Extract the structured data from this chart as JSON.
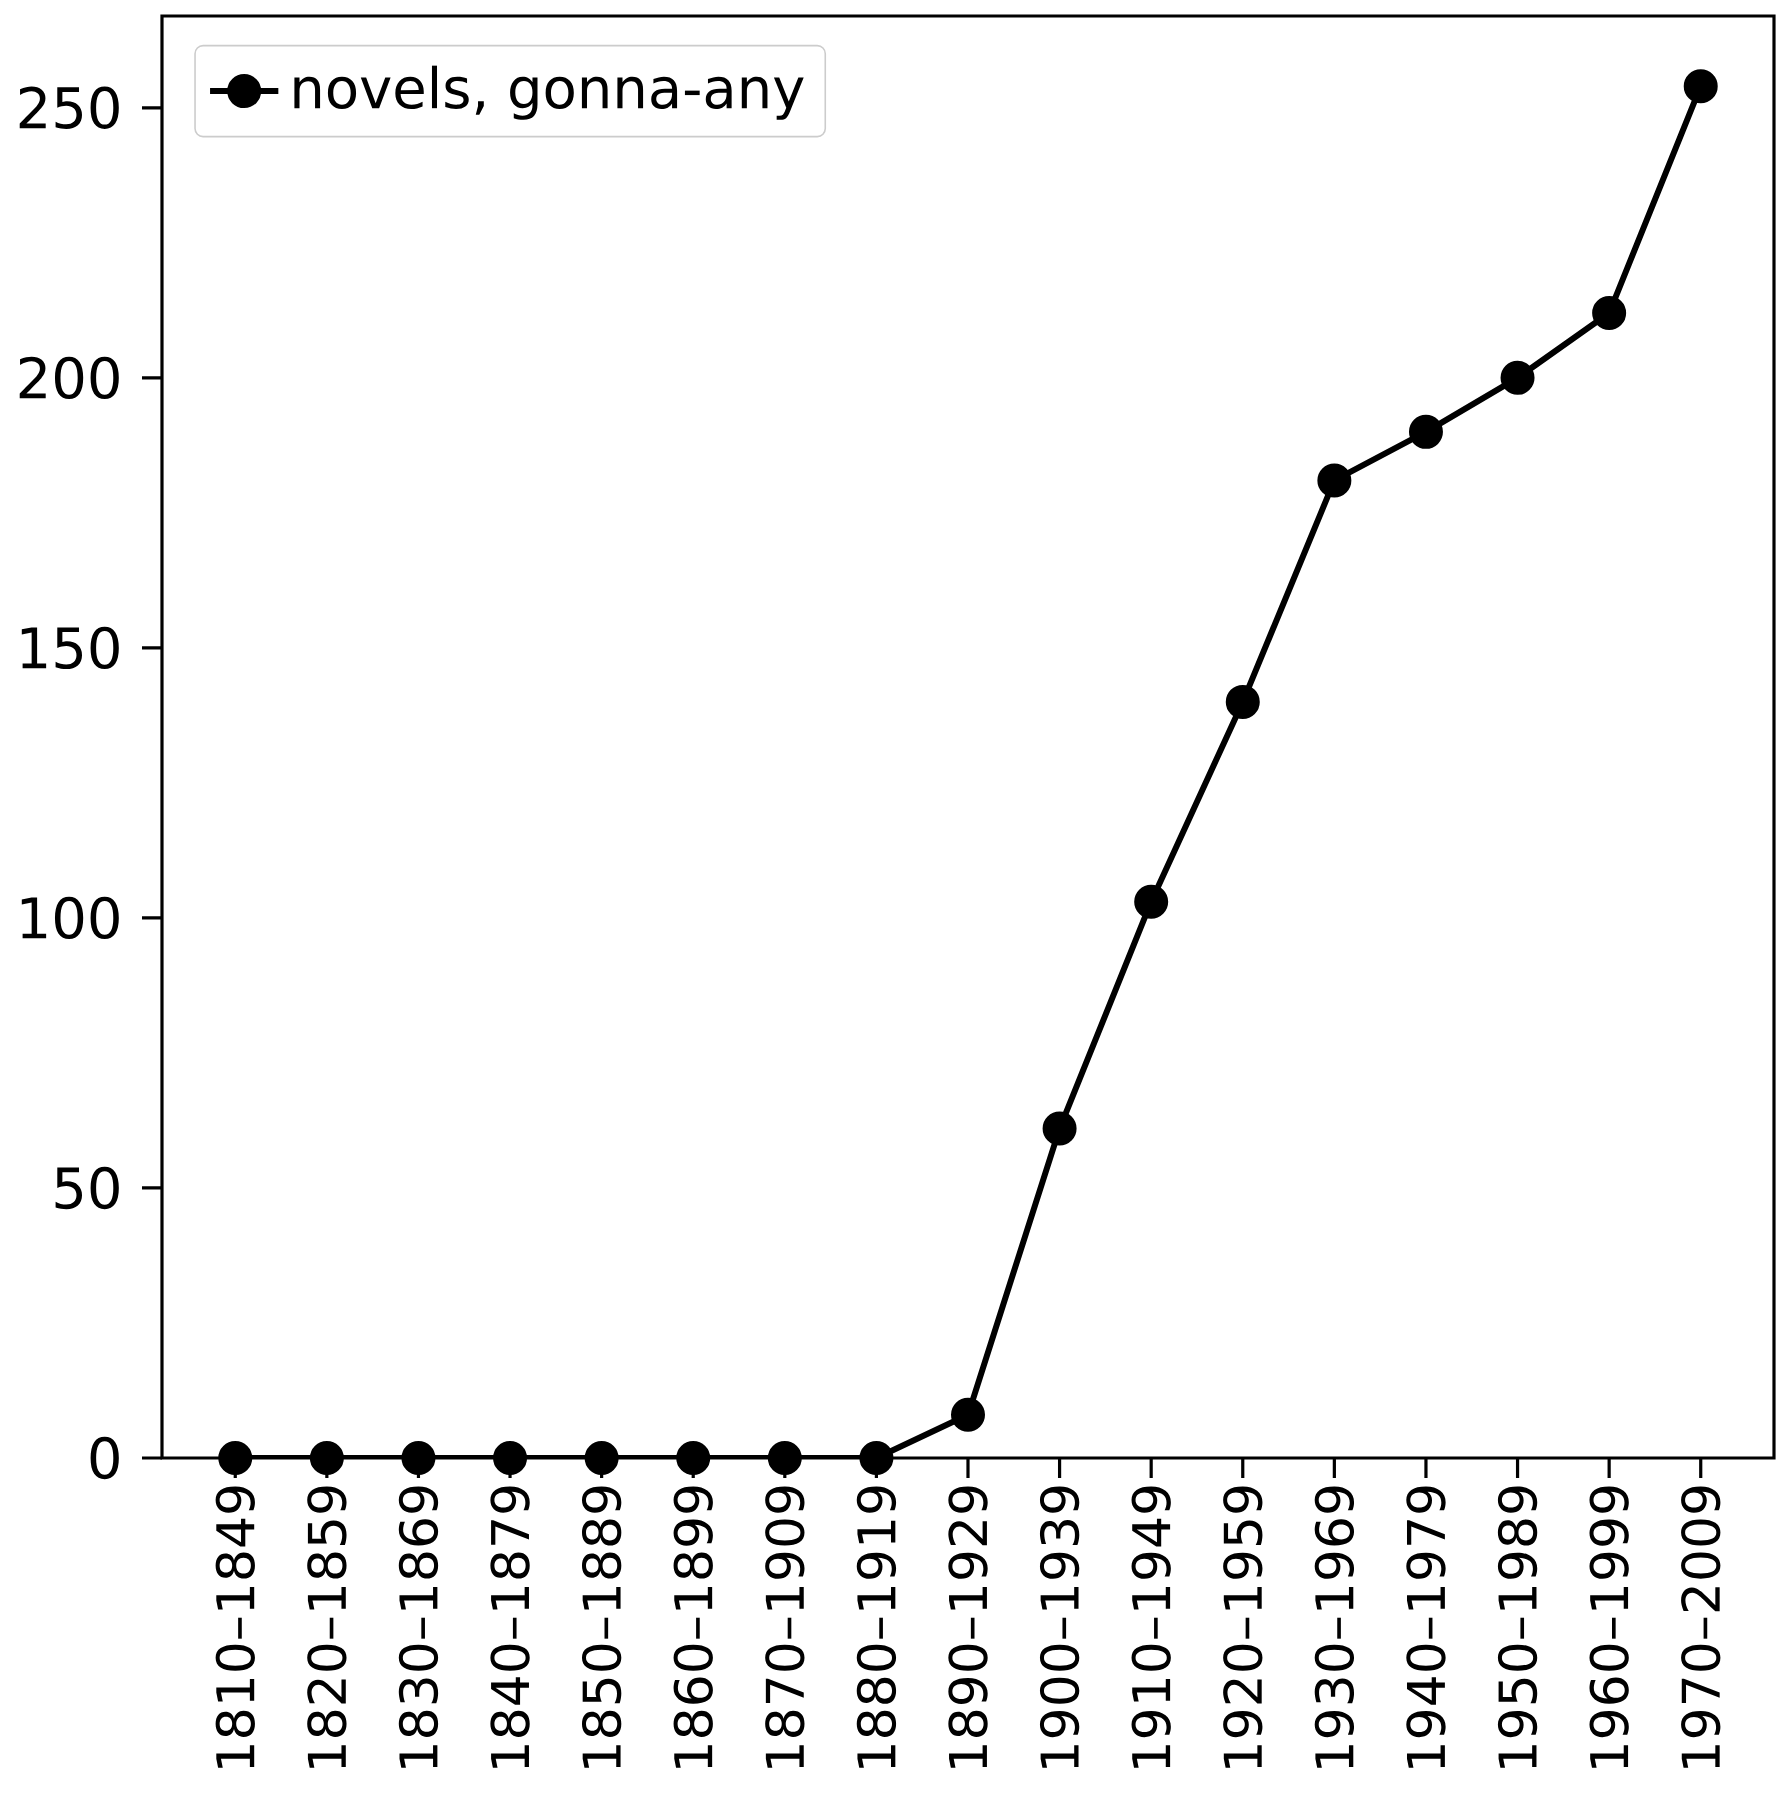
{
  "chart_data": {
    "type": "line",
    "categories": [
      "1810–1849",
      "1820–1859",
      "1830–1869",
      "1840–1879",
      "1850–1889",
      "1860–1899",
      "1870–1909",
      "1880–1919",
      "1890–1929",
      "1900–1939",
      "1910–1949",
      "1920–1959",
      "1930–1969",
      "1940–1979",
      "1950–1989",
      "1960–1999",
      "1970–2009"
    ],
    "series": [
      {
        "name": "novels, gonna-any",
        "color": "#000000",
        "values": [
          0,
          0,
          0,
          0,
          0,
          0,
          0,
          0,
          8,
          61,
          103,
          140,
          181,
          190,
          200,
          212,
          254
        ]
      }
    ],
    "ylim": [
      0,
      267
    ],
    "yticks": [
      0,
      50,
      100,
      150,
      200,
      250
    ],
    "legend": "top left",
    "marker": "circle",
    "line_style": "solid",
    "grid": false
  }
}
